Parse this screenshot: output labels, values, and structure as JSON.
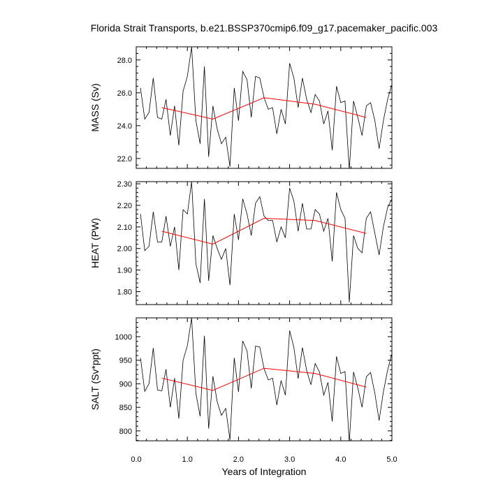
{
  "chart_data": {
    "type": "line",
    "title": "Florida Strait Transports, b.e21.BSSP370cmip6.f09_g17.pacemaker_pacific.003",
    "xlabel": "Years of Integration",
    "xlim": [
      0,
      5
    ],
    "xticks": [
      "0.0",
      "1.0",
      "2.0",
      "3.0",
      "4.0",
      "5.0"
    ],
    "grid": false,
    "colors": {
      "monthly": "#000000",
      "annual": "#ff0000"
    },
    "panels": [
      {
        "ylabel": "MASS (Sv)",
        "ylim": [
          21.4,
          28.8
        ],
        "yticks": [
          "22.0",
          "24.0",
          "26.0",
          "28.0"
        ],
        "series": [
          {
            "x": [
              0.083,
              0.167,
              0.25,
              0.333,
              0.417,
              0.5,
              0.583,
              0.667,
              0.75,
              0.833,
              0.917,
              1.0,
              1.083,
              1.167,
              1.25,
              1.333,
              1.417,
              1.5,
              1.583,
              1.667,
              1.75,
              1.833,
              1.917,
              2.0,
              2.083,
              2.167,
              2.25,
              2.333,
              2.417,
              2.5,
              2.583,
              2.667,
              2.75,
              2.833,
              2.917,
              3.0,
              3.083,
              3.167,
              3.25,
              3.333,
              3.417,
              3.5,
              3.583,
              3.667,
              3.75,
              3.833,
              3.917,
              4.0,
              4.083,
              4.167,
              4.25,
              4.333,
              4.417,
              4.5,
              4.583,
              4.667,
              4.75,
              4.833,
              4.917,
              5.0
            ],
            "y": [
              26.3,
              24.4,
              24.8,
              26.9,
              24.5,
              24.4,
              25.6,
              23.4,
              25.2,
              22.8,
              26.1,
              27.0,
              28.8,
              24.3,
              22.9,
              27.6,
              22.1,
              25.2,
              23.8,
              22.9,
              23.3,
              21.5,
              26.3,
              24.3,
              27.3,
              26.8,
              24.5,
              27.0,
              26.9,
              25.7,
              25.0,
              25.1,
              23.5,
              25.0,
              24.1,
              27.8,
              26.9,
              25.1,
              26.9,
              25.6,
              24.8,
              25.9,
              25.5,
              24.1,
              24.9,
              22.5,
              26.4,
              25.4,
              25.5,
              21.3,
              25.5,
              24.5,
              23.4,
              25.2,
              25.4,
              24.3,
              22.6,
              24.3,
              25.6,
              26.5
            ]
          },
          {
            "x": [
              0.5,
              1.5,
              2.5,
              3.5,
              4.5
            ],
            "y": [
              25.1,
              24.4,
              25.7,
              25.3,
              24.5
            ]
          }
        ]
      },
      {
        "ylabel": "HEAT (PW)",
        "ylim": [
          1.74,
          2.31
        ],
        "yticks": [
          "1.80",
          "1.90",
          "2.00",
          "2.10",
          "2.20",
          "2.30"
        ],
        "series": [
          {
            "x": [
              0.083,
              0.167,
              0.25,
              0.333,
              0.417,
              0.5,
              0.583,
              0.667,
              0.75,
              0.833,
              0.917,
              1.0,
              1.083,
              1.167,
              1.25,
              1.333,
              1.417,
              1.5,
              1.583,
              1.667,
              1.75,
              1.833,
              1.917,
              2.0,
              2.083,
              2.167,
              2.25,
              2.333,
              2.417,
              2.5,
              2.583,
              2.667,
              2.75,
              2.833,
              2.917,
              3.0,
              3.083,
              3.167,
              3.25,
              3.333,
              3.417,
              3.5,
              3.583,
              3.667,
              3.75,
              3.833,
              3.917,
              4.0,
              4.083,
              4.167,
              4.25,
              4.333,
              4.417,
              4.5,
              4.583,
              4.667,
              4.75,
              4.833,
              4.917,
              5.0
            ],
            "y": [
              2.16,
              1.99,
              2.01,
              2.17,
              2.03,
              2.03,
              2.15,
              2.01,
              2.1,
              1.9,
              2.18,
              2.16,
              2.31,
              1.93,
              1.84,
              2.23,
              1.85,
              2.06,
              2.0,
              1.95,
              2.0,
              1.83,
              2.16,
              2.04,
              2.23,
              2.16,
              2.06,
              2.21,
              2.24,
              2.15,
              2.13,
              2.13,
              2.03,
              2.1,
              2.05,
              2.28,
              2.22,
              2.08,
              2.21,
              2.09,
              2.09,
              2.18,
              2.16,
              2.08,
              2.14,
              1.94,
              2.26,
              2.18,
              2.14,
              1.75,
              2.06,
              2.0,
              1.98,
              2.14,
              2.17,
              2.07,
              1.97,
              2.1,
              2.19,
              2.23
            ]
          },
          {
            "x": [
              0.5,
              1.5,
              2.5,
              3.5,
              4.5
            ],
            "y": [
              2.08,
              2.02,
              2.14,
              2.13,
              2.07
            ]
          }
        ]
      },
      {
        "ylabel": "SALT (Sv*ppt)",
        "ylim": [
          779,
          1040
        ],
        "yticks": [
          "800",
          "850",
          "900",
          "950",
          "1000"
        ],
        "series": [
          {
            "x": [
              0.083,
              0.167,
              0.25,
              0.333,
              0.417,
              0.5,
              0.583,
              0.667,
              0.75,
              0.833,
              0.917,
              1.0,
              1.083,
              1.167,
              1.25,
              1.333,
              1.417,
              1.5,
              1.583,
              1.667,
              1.75,
              1.833,
              1.917,
              2.0,
              2.083,
              2.167,
              2.25,
              2.333,
              2.417,
              2.5,
              2.583,
              2.667,
              2.75,
              2.833,
              2.917,
              3.0,
              3.083,
              3.167,
              3.25,
              3.333,
              3.417,
              3.5,
              3.583,
              3.667,
              3.75,
              3.833,
              3.917,
              4.0,
              4.083,
              4.167,
              4.25,
              4.333,
              4.417,
              4.5,
              4.583,
              4.667,
              4.75,
              4.833,
              4.917,
              5.0
            ],
            "y": [
              955,
              884,
              900,
              976,
              887,
              885,
              931,
              850,
              912,
              826,
              950,
              981,
              1040,
              880,
              831,
              1002,
              805,
              916,
              862,
              833,
              848,
              781,
              955,
              883,
              991,
              970,
              890,
              980,
              978,
              932,
              908,
              912,
              855,
              907,
              876,
              1013,
              977,
              911,
              977,
              928,
              898,
              943,
              925,
              876,
              903,
              820,
              958,
              922,
              926,
              775,
              925,
              891,
              850,
              915,
              924,
              880,
              822,
              883,
              929,
              964
            ]
          },
          {
            "x": [
              0.5,
              1.5,
              2.5,
              3.5,
              4.5
            ],
            "y": [
              912,
              886,
              933,
              922,
              893
            ]
          }
        ]
      }
    ]
  }
}
